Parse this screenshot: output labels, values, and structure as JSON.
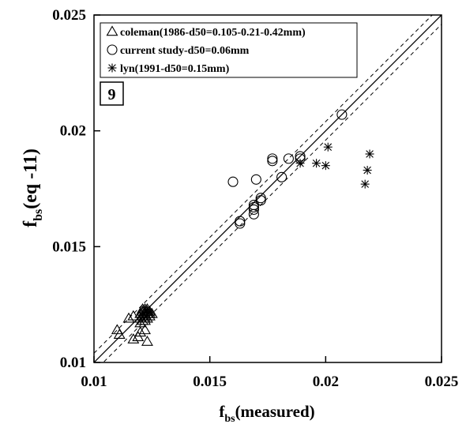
{
  "chart_data": {
    "type": "scatter",
    "panel_label": "9",
    "xlabel": {
      "main": "f",
      "sub": "bs",
      "rest": "(measured)"
    },
    "ylabel": {
      "main": "f",
      "sub": "bs",
      "rest": "(eq -11)"
    },
    "xlim": [
      0.01,
      0.025
    ],
    "ylim": [
      0.01,
      0.025
    ],
    "xticks": [
      "0.01",
      "0.015",
      "0.02",
      "0.025"
    ],
    "yticks": [
      "0.01",
      "0.015",
      "0.02",
      "0.025"
    ],
    "grid": false,
    "legend_position": "top-left",
    "reference_lines": [
      {
        "style": "solid",
        "slope": 1,
        "offset": 0
      },
      {
        "style": "dashed",
        "slope": 1,
        "offset": 0.0004
      },
      {
        "style": "dashed",
        "slope": 1,
        "offset": -0.0004
      }
    ],
    "series": [
      {
        "name": "coleman(1986-d50=0.105-0.21-0.42mm)",
        "marker": "triangle",
        "points": [
          [
            0.011,
            0.0114
          ],
          [
            0.0111,
            0.0112
          ],
          [
            0.0115,
            0.0119
          ],
          [
            0.0117,
            0.012
          ],
          [
            0.0117,
            0.011
          ],
          [
            0.0119,
            0.0111
          ],
          [
            0.012,
            0.0117
          ],
          [
            0.012,
            0.0119
          ],
          [
            0.012,
            0.0121
          ],
          [
            0.012,
            0.0113
          ],
          [
            0.0121,
            0.0118
          ],
          [
            0.0121,
            0.012
          ],
          [
            0.0121,
            0.0122
          ],
          [
            0.0121,
            0.0123
          ],
          [
            0.0122,
            0.0118
          ],
          [
            0.0122,
            0.0119
          ],
          [
            0.0122,
            0.012
          ],
          [
            0.0122,
            0.0121
          ],
          [
            0.0122,
            0.0122
          ],
          [
            0.0122,
            0.0123
          ],
          [
            0.0123,
            0.0119
          ],
          [
            0.0123,
            0.0121
          ],
          [
            0.0123,
            0.0122
          ],
          [
            0.0123,
            0.0123
          ],
          [
            0.0124,
            0.012
          ],
          [
            0.0124,
            0.0121
          ],
          [
            0.0124,
            0.0122
          ],
          [
            0.0125,
            0.0121
          ],
          [
            0.0123,
            0.0109
          ],
          [
            0.0122,
            0.0114
          ]
        ]
      },
      {
        "name": "current study-d50=0.06mm",
        "marker": "circle",
        "points": [
          [
            0.016,
            0.0178
          ],
          [
            0.0163,
            0.016
          ],
          [
            0.0163,
            0.0161
          ],
          [
            0.0169,
            0.0164
          ],
          [
            0.0169,
            0.0166
          ],
          [
            0.0169,
            0.0167
          ],
          [
            0.0169,
            0.0168
          ],
          [
            0.017,
            0.0179
          ],
          [
            0.0172,
            0.017
          ],
          [
            0.0172,
            0.0171
          ],
          [
            0.0177,
            0.0187
          ],
          [
            0.0177,
            0.0188
          ],
          [
            0.0181,
            0.018
          ],
          [
            0.0184,
            0.0188
          ],
          [
            0.0189,
            0.0188
          ],
          [
            0.0189,
            0.0189
          ],
          [
            0.0207,
            0.0207
          ]
        ]
      },
      {
        "name": "lyn(1991-d50=0.15mm)",
        "marker": "asterisk",
        "points": [
          [
            0.0189,
            0.0186
          ],
          [
            0.0196,
            0.0186
          ],
          [
            0.02,
            0.0185
          ],
          [
            0.0201,
            0.0193
          ],
          [
            0.0217,
            0.0177
          ],
          [
            0.0218,
            0.0183
          ],
          [
            0.0219,
            0.019
          ]
        ]
      }
    ]
  }
}
